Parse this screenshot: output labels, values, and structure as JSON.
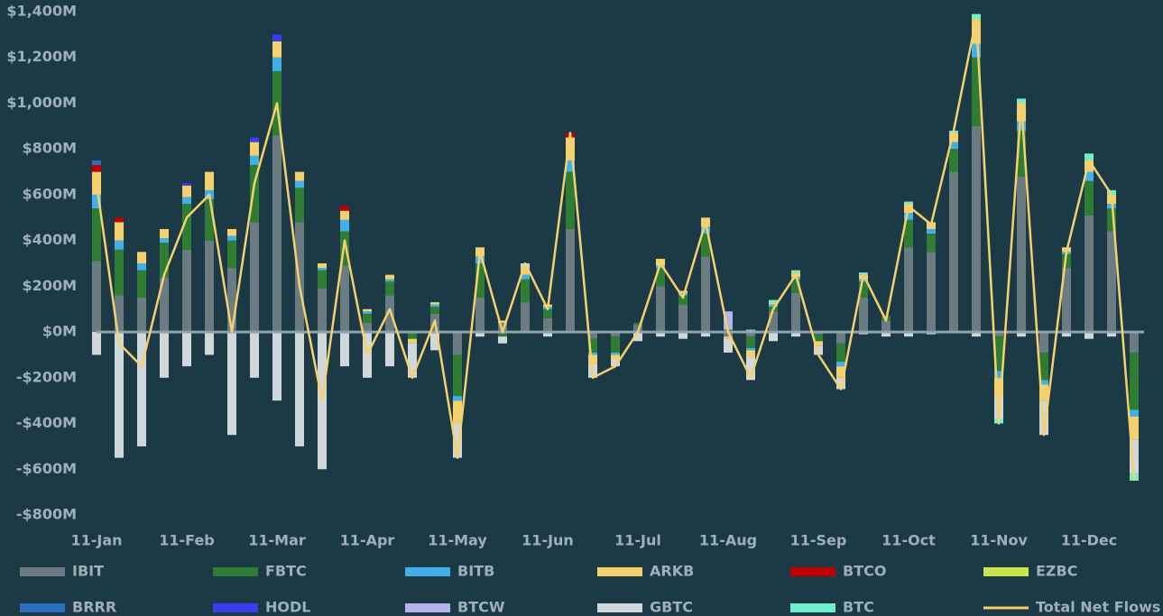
{
  "chart_data": {
    "type": "bar",
    "stacked": true,
    "categories": [
      "11-Jan",
      null,
      null,
      null,
      "11-Feb",
      null,
      null,
      null,
      "11-Mar",
      null,
      null,
      null,
      "11-Apr",
      null,
      null,
      null,
      "11-May",
      null,
      null,
      null,
      "11-Jun",
      null,
      null,
      null,
      "11-Jul",
      null,
      null,
      null,
      "11-Aug",
      null,
      null,
      null,
      "11-Sep",
      null,
      null,
      null,
      "11-Oct",
      null,
      null,
      null,
      "11-Nov",
      null,
      null,
      null,
      "11-Dec",
      null,
      null
    ],
    "ylim": [
      -800,
      1400
    ],
    "yticks": [
      {
        "value": -800,
        "label": "-$800M"
      },
      {
        "value": -600,
        "label": "-$600M"
      },
      {
        "value": -400,
        "label": "-$400M"
      },
      {
        "value": -200,
        "label": "-$200M"
      },
      {
        "value": 0,
        "label": "$0M"
      },
      {
        "value": 200,
        "label": "$200M"
      },
      {
        "value": 400,
        "label": "$400M"
      },
      {
        "value": 600,
        "label": "$600M"
      },
      {
        "value": 800,
        "label": "$800M"
      },
      {
        "value": 1000,
        "label": "$1,000M"
      },
      {
        "value": 1200,
        "label": "$1,200M"
      },
      {
        "value": 1400,
        "label": "$1,400M"
      }
    ],
    "grid": false,
    "legend": "bottom",
    "series": [
      {
        "name": "IBIT",
        "color": "#6b7b82",
        "values": [
          310,
          160,
          150,
          240,
          360,
          400,
          280,
          480,
          860,
          480,
          190,
          290,
          40,
          160,
          0,
          80,
          -100,
          150,
          40,
          130,
          60,
          450,
          -30,
          -20,
          30,
          200,
          120,
          330,
          -20,
          -20,
          90,
          170,
          -10,
          -50,
          150,
          50,
          370,
          350,
          700,
          900,
          -20,
          680,
          -90,
          280,
          510,
          440,
          -90
        ]
      },
      {
        "name": "FBTC",
        "color": "#2e7d32",
        "values": [
          230,
          200,
          120,
          150,
          200,
          180,
          120,
          250,
          280,
          150,
          80,
          150,
          40,
          60,
          -30,
          30,
          -180,
          150,
          -20,
          100,
          40,
          250,
          -60,
          -70,
          10,
          80,
          40,
          100,
          10,
          -50,
          20,
          60,
          -30,
          -80,
          70,
          20,
          120,
          80,
          100,
          300,
          -150,
          200,
          -120,
          60,
          150,
          100,
          -250
        ]
      },
      {
        "name": "BITB",
        "color": "#42b0e8",
        "values": [
          60,
          40,
          30,
          20,
          30,
          40,
          20,
          40,
          60,
          30,
          10,
          50,
          10,
          10,
          0,
          10,
          -20,
          30,
          0,
          20,
          10,
          50,
          -10,
          -10,
          0,
          10,
          10,
          30,
          0,
          -10,
          10,
          10,
          0,
          -20,
          10,
          0,
          30,
          20,
          30,
          60,
          -30,
          40,
          -20,
          10,
          40,
          20,
          -30
        ]
      },
      {
        "name": "ARKB",
        "color": "#f5d06f",
        "values": [
          100,
          80,
          50,
          40,
          50,
          80,
          30,
          60,
          70,
          40,
          20,
          40,
          10,
          20,
          -20,
          10,
          -100,
          40,
          10,
          30,
          10,
          100,
          -40,
          -20,
          0,
          30,
          10,
          40,
          -10,
          -30,
          10,
          20,
          -20,
          -50,
          20,
          0,
          40,
          30,
          40,
          100,
          -80,
          80,
          -70,
          20,
          50,
          40,
          -100
        ]
      },
      {
        "name": "BTCO",
        "color": "#c00000",
        "values": [
          30,
          20,
          0,
          0,
          0,
          0,
          0,
          0,
          0,
          0,
          0,
          20,
          0,
          0,
          0,
          0,
          0,
          0,
          0,
          0,
          0,
          20,
          0,
          0,
          0,
          0,
          0,
          0,
          0,
          0,
          0,
          0,
          0,
          0,
          0,
          0,
          0,
          0,
          0,
          0,
          0,
          0,
          0,
          0,
          0,
          0,
          0
        ]
      },
      {
        "name": "EZBC",
        "color": "#c8e64a",
        "values": [
          0,
          0,
          0,
          0,
          0,
          0,
          0,
          0,
          0,
          0,
          0,
          0,
          0,
          0,
          0,
          0,
          0,
          0,
          0,
          0,
          0,
          0,
          0,
          0,
          0,
          0,
          0,
          0,
          0,
          0,
          0,
          0,
          0,
          0,
          0,
          0,
          0,
          0,
          0,
          10,
          0,
          0,
          0,
          0,
          0,
          0,
          0
        ]
      },
      {
        "name": "BRRR",
        "color": "#2a6fc0",
        "values": [
          20,
          0,
          0,
          0,
          0,
          0,
          0,
          0,
          0,
          0,
          0,
          0,
          0,
          0,
          0,
          0,
          0,
          0,
          0,
          0,
          0,
          0,
          0,
          0,
          0,
          0,
          0,
          0,
          0,
          0,
          0,
          0,
          0,
          0,
          0,
          0,
          0,
          0,
          0,
          0,
          0,
          0,
          0,
          0,
          0,
          0,
          0
        ]
      },
      {
        "name": "HODL",
        "color": "#3b3bf0",
        "values": [
          0,
          0,
          0,
          0,
          10,
          0,
          0,
          20,
          30,
          0,
          0,
          0,
          0,
          0,
          0,
          0,
          0,
          0,
          0,
          0,
          0,
          0,
          0,
          0,
          0,
          0,
          0,
          0,
          0,
          0,
          0,
          0,
          0,
          0,
          0,
          0,
          0,
          0,
          0,
          0,
          0,
          0,
          0,
          0,
          0,
          0,
          0
        ]
      },
      {
        "name": "BTCW",
        "color": "#b3b3ee",
        "values": [
          0,
          0,
          0,
          0,
          0,
          0,
          0,
          0,
          0,
          0,
          0,
          0,
          0,
          0,
          0,
          0,
          0,
          0,
          0,
          0,
          0,
          0,
          0,
          0,
          0,
          0,
          0,
          0,
          80,
          0,
          0,
          0,
          0,
          0,
          0,
          0,
          0,
          0,
          0,
          0,
          0,
          0,
          0,
          0,
          0,
          0,
          0
        ]
      },
      {
        "name": "GBTC",
        "color": "#d0d8dc",
        "values": [
          -100,
          -550,
          -500,
          -200,
          -150,
          -100,
          -450,
          -200,
          -300,
          -500,
          -600,
          -150,
          -200,
          -150,
          -150,
          -80,
          -150,
          -20,
          -30,
          20,
          -20,
          0,
          -60,
          -30,
          -40,
          -20,
          -30,
          -20,
          -60,
          -100,
          -40,
          -20,
          -40,
          -50,
          -10,
          -20,
          -20,
          -10,
          0,
          -20,
          -100,
          -20,
          -150,
          -20,
          -30,
          -20,
          -150
        ]
      },
      {
        "name": "BTC",
        "color": "#6ef0c8",
        "values": [
          0,
          0,
          0,
          0,
          0,
          0,
          0,
          0,
          0,
          0,
          0,
          0,
          0,
          0,
          0,
          0,
          0,
          0,
          0,
          0,
          0,
          0,
          0,
          0,
          0,
          0,
          0,
          0,
          0,
          10,
          10,
          10,
          0,
          0,
          10,
          0,
          10,
          0,
          10,
          20,
          -20,
          20,
          0,
          0,
          30,
          20,
          -30
        ]
      },
      {
        "name": "Total Net Flows",
        "color": "#f5d06f",
        "type": "line",
        "values": [
          650,
          -50,
          -150,
          250,
          500,
          600,
          0,
          650,
          1000,
          200,
          -300,
          400,
          -100,
          100,
          -200,
          50,
          -550,
          350,
          0,
          300,
          100,
          870,
          -200,
          -150,
          0,
          300,
          150,
          480,
          0,
          -200,
          100,
          250,
          -100,
          -250,
          250,
          50,
          550,
          470,
          880,
          1370,
          -400,
          1000,
          -450,
          350,
          750,
          600,
          -650
        ]
      }
    ]
  }
}
